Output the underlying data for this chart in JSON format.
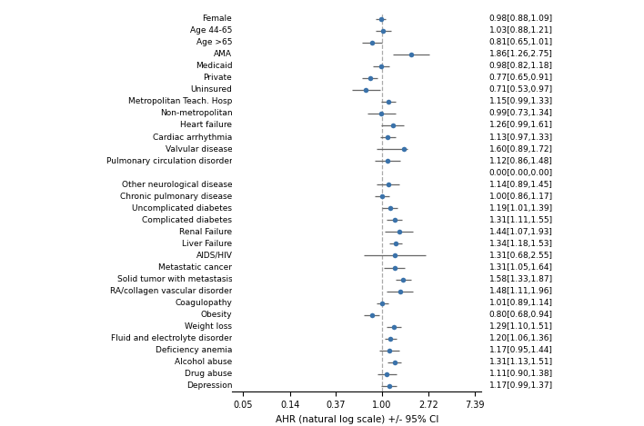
{
  "labels": [
    "Female",
    "Age 44-65",
    "Age >65",
    "AMA",
    "Medicaid",
    "Private",
    "Uninsured",
    "Metropolitan Teach. Hosp",
    "Non-metropolitan",
    "Heart failure",
    "Cardiac arrhythmia",
    "Valvular disease",
    "Pulmonary circulation disorder",
    "",
    "Other neurological disease",
    "Chronic pulmonary disease",
    "Uncomplicated diabetes",
    "Complicated diabetes",
    "Renal Failure",
    "Liver Failure",
    "AIDS/HIV",
    "Metastatic cancer",
    "Solid tumor with metastasis",
    "RA/collagen vascular disorder",
    "Coagulopathy",
    "Obesity",
    "Weight loss",
    "Fluid and electrolyte disorder",
    "Deficiency anemia",
    "Alcohol abuse",
    "Drug abuse",
    "Depression"
  ],
  "estimates": [
    0.98,
    1.03,
    0.81,
    1.86,
    0.98,
    0.77,
    0.71,
    1.15,
    0.99,
    1.26,
    1.13,
    1.6,
    1.12,
    0.0,
    1.14,
    1.0,
    1.19,
    1.31,
    1.44,
    1.34,
    1.31,
    1.31,
    1.58,
    1.48,
    1.01,
    0.8,
    1.29,
    1.2,
    1.17,
    1.31,
    1.11,
    1.17
  ],
  "ci_low": [
    0.88,
    0.88,
    0.65,
    1.26,
    0.82,
    0.65,
    0.53,
    0.99,
    0.73,
    0.99,
    0.97,
    0.89,
    0.86,
    0.0,
    0.89,
    0.86,
    1.01,
    1.11,
    1.07,
    1.18,
    0.68,
    1.05,
    1.33,
    1.11,
    0.89,
    0.68,
    1.1,
    1.06,
    0.95,
    1.13,
    0.9,
    0.99
  ],
  "ci_high": [
    1.09,
    1.21,
    1.01,
    2.75,
    1.18,
    0.91,
    0.97,
    1.33,
    1.34,
    1.61,
    1.33,
    1.72,
    1.48,
    0.0,
    1.45,
    1.17,
    1.39,
    1.55,
    1.93,
    1.53,
    2.55,
    1.64,
    1.87,
    1.96,
    1.14,
    0.94,
    1.51,
    1.36,
    1.44,
    1.51,
    1.38,
    1.37
  ],
  "annotations": [
    "0.98[0.88,1.09]",
    "1.03[0.88,1.21]",
    "0.81[0.65,1.01]",
    "1.86[1.26,2.75]",
    "0.98[0.82,1.18]",
    "0.77[0.65,0.91]",
    "0.71[0.53,0.97]",
    "1.15[0.99,1.33]",
    "0.99[0.73,1.34]",
    "1.26[0.99,1.61]",
    "1.13[0.97,1.33]",
    "1.60[0.89,1.72]",
    "1.12[0.86,1.48]",
    "0.00[0.00,0.00]",
    "1.14[0.89,1.45]",
    "1.00[0.86,1.17]",
    "1.19[1.01,1.39]",
    "1.31[1.11,1.55]",
    "1.44[1.07,1.93]",
    "1.34[1.18,1.53]",
    "1.31[0.68,2.55]",
    "1.31[1.05,1.64]",
    "1.58[1.33,1.87]",
    "1.48[1.11,1.96]",
    "1.01[0.89,1.14]",
    "0.80[0.68,0.94]",
    "1.29[1.10,1.51]",
    "1.20[1.06,1.36]",
    "1.17[0.95,1.44]",
    "1.31[1.13,1.51]",
    "1.11[0.90,1.38]",
    "1.17[0.99,1.37]"
  ],
  "dot_color": "#3A72AA",
  "line_color": "#666666",
  "ref_line_color": "#AAAAAA",
  "background_color": "#ffffff",
  "xlabel": "AHR (natural log scale) +/- 95% CI",
  "x_ticks": [
    0.05,
    0.14,
    0.37,
    1.0,
    2.72,
    7.39
  ],
  "x_tick_labels": [
    "0.05",
    "0.14",
    "0.37",
    "1.00",
    "2.72",
    "7.39"
  ]
}
